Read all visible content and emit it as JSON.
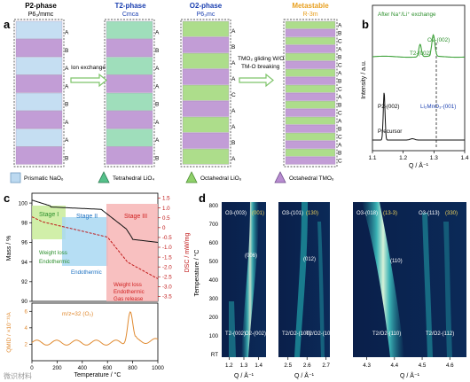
{
  "panel_a": {
    "letter": "a",
    "phases": [
      {
        "name": "P2-phase",
        "group": "P6₃/mmc",
        "color": "#000000"
      },
      {
        "name": "T2-phase",
        "group": "Cmca",
        "color": "#1a3fb0"
      },
      {
        "name": "O2-phase",
        "group": "P6₃mc",
        "color": "#1a3fb0"
      },
      {
        "name": "Metastable",
        "group": "R-3m",
        "color": "#e8a020"
      }
    ],
    "arrow1_label": "Ion exchange",
    "arrow2_line1": "TMO₂ gliding W/O",
    "arrow2_line2": "TM-O breaking",
    "stack_p2": [
      "A",
      "B",
      "A",
      "A",
      "B",
      "A",
      "A",
      "B"
    ],
    "stack_t2": [
      "A",
      "B",
      "A",
      "A",
      "B",
      "A",
      "A",
      "B"
    ],
    "stack_o2": [
      "A",
      "B",
      "A",
      "A",
      "C",
      "A",
      "A",
      "B",
      "A"
    ],
    "stack_meta": [
      "A",
      "B",
      "C",
      "A",
      "B",
      "C",
      "A",
      "B",
      "C",
      "A",
      "B",
      "C",
      "A",
      "B",
      "C",
      "A",
      "B",
      "C"
    ],
    "legend": [
      "Prismatic NaO₆",
      "Tetrahedral LiO₄",
      "Octahedral LiO₆",
      "Octahedral TMO₆"
    ]
  },
  "panel_b": {
    "letter": "b",
    "top_label": "After Na⁺/Li⁺ exchange",
    "bottom_label": "Precursor",
    "peaks_top": [
      "T2-(002)",
      "O2-(002)"
    ],
    "peak_bottom": "P2-(002)",
    "impurity": "Li₂MnO₃-(001)",
    "ylabel": "Intensity / a.u.",
    "xlabel": "Q / Å⁻¹",
    "xticks": [
      "1.1",
      "1.2",
      "1.3",
      "1.4"
    ]
  },
  "panel_c": {
    "letter": "c",
    "stages": [
      "Stage I",
      "Stage II",
      "Stage III"
    ],
    "left_ylabel": "Mass / %",
    "right_ylabel": "DSC / mW/mg",
    "left_ticks": [
      "100",
      "98",
      "96",
      "94",
      "92",
      "90"
    ],
    "right_ticks": [
      "1.5",
      "1.0",
      "0.5",
      "0",
      "-0.5",
      "-1.0",
      "-1.5",
      "-2.0",
      "-2.5",
      "-3.0",
      "-3.5"
    ],
    "notes_stage1": [
      "Weight loss",
      "Endothermic"
    ],
    "notes_stage2": [
      "Endothermic"
    ],
    "notes_stage3": [
      "Weight loss",
      "Endothermic",
      "Gas release"
    ],
    "ms_label": "m/z=32 (O₂)",
    "ms_ylabel": "QMID / ×10⁻¹¹A",
    "ms_ticks": [
      "6",
      "4",
      "2"
    ],
    "xlabel": "Temperature / °C",
    "xticks": [
      "0",
      "200",
      "400",
      "600",
      "800",
      "1000"
    ]
  },
  "panel_d": {
    "letter": "d",
    "ylabel": "Temperature / °C",
    "yticks": [
      "800",
      "700",
      "600",
      "500",
      "400",
      "300",
      "200",
      "100",
      "RT"
    ],
    "xlabel": "Q / Å⁻¹",
    "p1": {
      "xticks": [
        "1.2",
        "1.3",
        "1.4"
      ],
      "top": [
        "O3-(003)",
        "(001)"
      ],
      "mid": "(006)",
      "bottom": [
        "T2-(002)",
        "O2-(002)"
      ]
    },
    "p2": {
      "xticks": [
        "2.5",
        "2.6",
        "2.7"
      ],
      "top": [
        "O3-(101)",
        "(130)"
      ],
      "mid": "(012)",
      "bottom": [
        "T2/O2-(100)",
        "T2/O2-(101)"
      ]
    },
    "p3": {
      "xticks": [
        "4.3",
        "4.4",
        "4.5",
        "4.6"
      ],
      "top": [
        "O3-(018)",
        "(13-3)",
        "O3-(113)",
        "(330)"
      ],
      "mid": "(110)",
      "bottom": [
        "T2/O2-(110)",
        "T2/O2-(112)"
      ]
    }
  },
  "watermark": "微识材料"
}
